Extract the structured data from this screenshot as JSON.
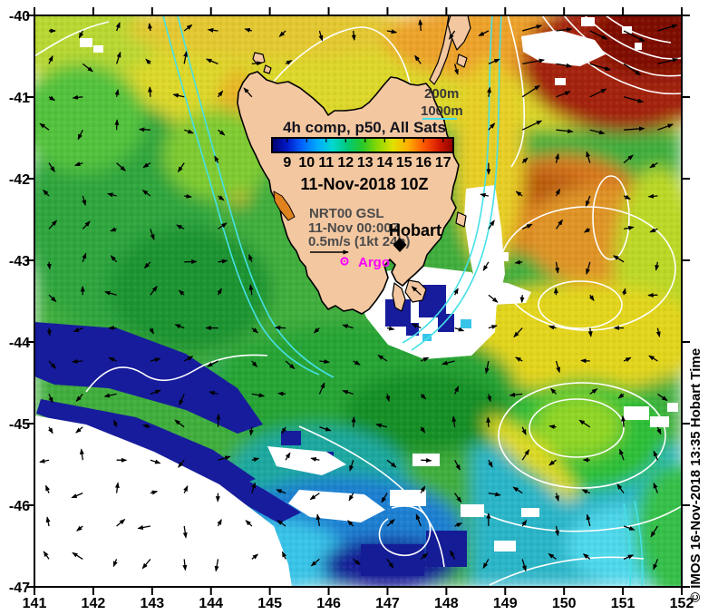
{
  "colorbar": {
    "title": "4h comp, p50, All Sats",
    "tick_labels": [
      "9",
      "10",
      "11",
      "12",
      "13",
      "14",
      "15",
      "16",
      "17"
    ],
    "gradient": [
      "#00006a",
      "#0018c8",
      "#0064ff",
      "#00aaff",
      "#00d8d0",
      "#00c878",
      "#28c828",
      "#8cd800",
      "#e0e000",
      "#ffb000",
      "#ff5c00",
      "#d81c00",
      "#8c0000"
    ]
  },
  "annotations": {
    "datetime": "11-Nov-2018 10Z",
    "model_name": "NRT00 GSL",
    "model_time": "11-Nov 00:00Z",
    "vector_scale": "0.5m/s (1kt 24h)",
    "city": "Hobart",
    "argo": "Argo",
    "depth_200": "200m",
    "depth_1000": "1000m",
    "credit": "© IMOS 16-Nov-2018 13:35 Hobart Time"
  },
  "axes": {
    "x_tick_labels": [
      "141",
      "142",
      "143",
      "144",
      "145",
      "146",
      "147",
      "148",
      "149",
      "150",
      "151",
      "152"
    ],
    "y_tick_labels": [
      "-40",
      "-41",
      "-42",
      "-43",
      "-44",
      "-45",
      "-46",
      "-47"
    ]
  },
  "colors": {
    "land": "#f3c7a0",
    "coastline": "#000000",
    "no_data": "#ffffff",
    "coldest_water": "#171c9c",
    "warmest_water": "#8c1404",
    "bathymetry_contour": "#45e0e6",
    "ssh_contour": "#ffffff",
    "argo_marker": "#ff00ff",
    "annotation_gray": "#4a4a4a"
  },
  "map_data": {
    "type": "heatmap",
    "title": "4h comp, p50, All Sats",
    "datetime_utc": "11-Nov-2018 10Z",
    "temperature_range_c": [
      9,
      17
    ],
    "lon_range_deg_e": [
      141,
      152
    ],
    "lat_range_deg": [
      -47,
      -40
    ],
    "overlays": [
      "sea surface temperature colour field",
      "surface current vectors (NRT00 GSL, 11-Nov 00:00Z, arrow scale 0.5m/s = 1kt 24h)",
      "bathymetry contours (200m, 1000m)",
      "sea surface height contours",
      "Argo float position",
      "Hobart location marker"
    ]
  }
}
